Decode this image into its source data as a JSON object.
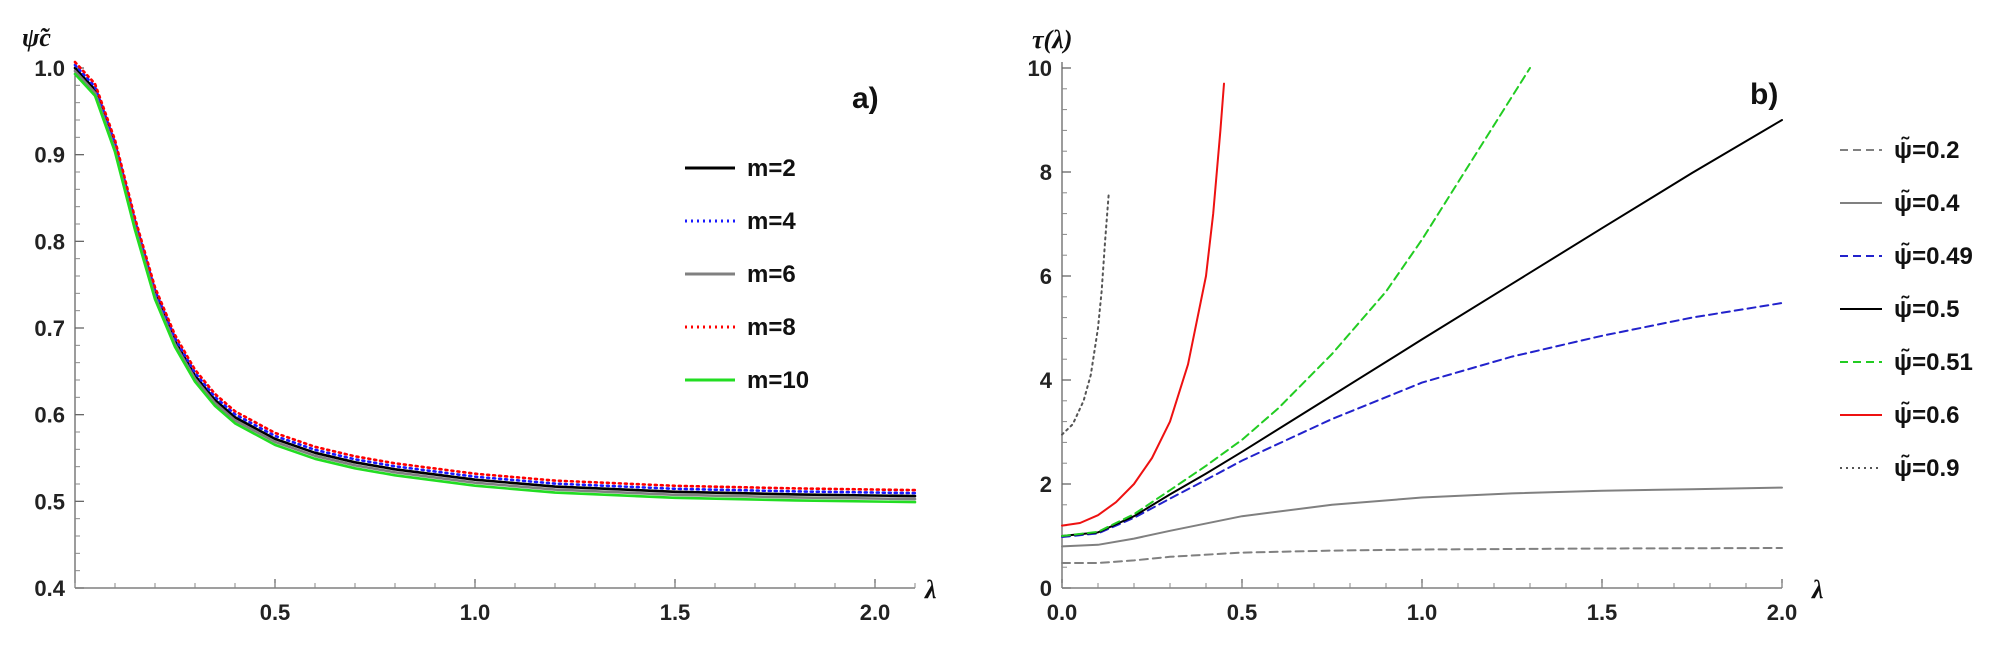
{
  "chart_data": [
    {
      "type": "line",
      "panel": "a)",
      "xlabel": "λ",
      "ylabel": "ψ̃c",
      "xlim": [
        0.0,
        2.1
      ],
      "ylim": [
        0.4,
        1.0
      ],
      "xticks": [
        0.5,
        1.0,
        1.5,
        2.0
      ],
      "xtick_labels": [
        "0.5",
        "1.0",
        "1.5",
        "2.0"
      ],
      "yticks": [
        0.4,
        0.5,
        0.6,
        0.7,
        0.8,
        0.9,
        1.0
      ],
      "ytick_labels": [
        "0.4",
        "0.5",
        "0.6",
        "0.7",
        "0.8",
        "0.9",
        "1.0"
      ],
      "legend_position": "center-right",
      "x": [
        0.0,
        0.05,
        0.1,
        0.15,
        0.2,
        0.25,
        0.3,
        0.35,
        0.4,
        0.5,
        0.6,
        0.7,
        0.8,
        1.0,
        1.2,
        1.5,
        1.8,
        2.1
      ],
      "series": [
        {
          "name": "m=2",
          "label": "m=2",
          "color": "#000000",
          "style": "solid",
          "values": [
            1.0,
            0.975,
            0.91,
            0.82,
            0.74,
            0.685,
            0.645,
            0.617,
            0.597,
            0.572,
            0.556,
            0.545,
            0.537,
            0.525,
            0.517,
            0.511,
            0.508,
            0.506
          ]
        },
        {
          "name": "m=4",
          "label": "m=4",
          "color": "#1a1aff",
          "style": "dotted",
          "values": [
            1.0,
            0.975,
            0.91,
            0.82,
            0.74,
            0.685,
            0.645,
            0.617,
            0.597,
            0.572,
            0.556,
            0.545,
            0.537,
            0.525,
            0.517,
            0.511,
            0.508,
            0.506
          ]
        },
        {
          "name": "m=6",
          "label": "m=6",
          "color": "#808080",
          "style": "solid",
          "values": [
            1.0,
            0.975,
            0.91,
            0.82,
            0.74,
            0.685,
            0.645,
            0.617,
            0.597,
            0.572,
            0.556,
            0.545,
            0.537,
            0.525,
            0.517,
            0.511,
            0.508,
            0.506
          ]
        },
        {
          "name": "m=8",
          "label": "m=8",
          "color": "#ff0000",
          "style": "dotted",
          "values": [
            1.0,
            0.975,
            0.91,
            0.82,
            0.74,
            0.685,
            0.645,
            0.617,
            0.597,
            0.572,
            0.556,
            0.545,
            0.537,
            0.525,
            0.517,
            0.511,
            0.508,
            0.506
          ]
        },
        {
          "name": "m=10",
          "label": "m=10",
          "color": "#22dd22",
          "style": "solid",
          "values": [
            1.0,
            0.975,
            0.91,
            0.82,
            0.74,
            0.685,
            0.645,
            0.617,
            0.597,
            0.572,
            0.556,
            0.545,
            0.537,
            0.525,
            0.517,
            0.511,
            0.508,
            0.506
          ]
        }
      ]
    },
    {
      "type": "line",
      "panel": "b)",
      "xlabel": "λ",
      "ylabel": "τ(λ)",
      "xlim": [
        0.0,
        2.0
      ],
      "ylim": [
        0,
        10
      ],
      "xticks": [
        0.0,
        0.5,
        1.0,
        1.5,
        2.0
      ],
      "xtick_labels": [
        "0.0",
        "0.5",
        "1.0",
        "1.5",
        "2.0"
      ],
      "yticks": [
        0,
        2,
        4,
        6,
        8,
        10
      ],
      "ytick_labels": [
        "0",
        "2",
        "4",
        "6",
        "8",
        "10"
      ],
      "legend_position": "right outside",
      "series": [
        {
          "name": "ψ̃=0.2",
          "label": "ψ̃=0.2",
          "color": "#808080",
          "style": "dashed",
          "x": [
            0.0,
            0.1,
            0.2,
            0.3,
            0.5,
            0.75,
            1.0,
            1.5,
            2.0
          ],
          "values": [
            0.48,
            0.48,
            0.53,
            0.6,
            0.68,
            0.72,
            0.74,
            0.76,
            0.77
          ]
        },
        {
          "name": "ψ̃=0.4",
          "label": "ψ̃=0.4",
          "color": "#808080",
          "style": "solid",
          "x": [
            0.0,
            0.1,
            0.2,
            0.3,
            0.5,
            0.75,
            1.0,
            1.25,
            1.5,
            1.75,
            2.0
          ],
          "values": [
            0.8,
            0.83,
            0.95,
            1.1,
            1.38,
            1.6,
            1.74,
            1.82,
            1.87,
            1.9,
            1.93
          ]
        },
        {
          "name": "ψ̃=0.49",
          "label": "ψ̃=0.49",
          "color": "#2222cc",
          "style": "dashed",
          "x": [
            0.0,
            0.1,
            0.2,
            0.3,
            0.4,
            0.5,
            0.75,
            1.0,
            1.25,
            1.5,
            1.75,
            2.0
          ],
          "values": [
            0.98,
            1.05,
            1.35,
            1.72,
            2.08,
            2.45,
            3.25,
            3.95,
            4.45,
            4.85,
            5.2,
            5.48
          ]
        },
        {
          "name": "ψ̃=0.5",
          "label": "ψ̃=0.5",
          "color": "#000000",
          "style": "solid",
          "x": [
            0.0,
            0.1,
            0.2,
            0.3,
            0.4,
            0.5,
            0.75,
            1.0,
            1.25,
            1.5,
            1.75,
            2.0
          ],
          "values": [
            1.0,
            1.07,
            1.38,
            1.8,
            2.2,
            2.62,
            3.7,
            4.78,
            5.85,
            6.92,
            7.98,
            9.0
          ]
        },
        {
          "name": "ψ̃=0.51",
          "label": "ψ̃=0.51",
          "color": "#22cc22",
          "style": "dashed",
          "x": [
            0.0,
            0.1,
            0.2,
            0.3,
            0.4,
            0.5,
            0.6,
            0.75,
            0.9,
            1.0,
            1.1,
            1.2,
            1.3
          ],
          "values": [
            1.0,
            1.08,
            1.42,
            1.88,
            2.35,
            2.85,
            3.45,
            4.5,
            5.7,
            6.7,
            7.8,
            8.9,
            10.0
          ]
        },
        {
          "name": "ψ̃=0.6",
          "label": "ψ̃=0.6",
          "color": "#ee1111",
          "style": "solid",
          "x": [
            0.0,
            0.05,
            0.1,
            0.15,
            0.2,
            0.25,
            0.3,
            0.35,
            0.4,
            0.42,
            0.44,
            0.45
          ],
          "values": [
            1.2,
            1.25,
            1.4,
            1.65,
            2.0,
            2.5,
            3.2,
            4.3,
            6.0,
            7.2,
            8.8,
            9.7
          ]
        },
        {
          "name": "ψ̃=0.9",
          "label": "ψ̃=0.9",
          "color": "#555555",
          "style": "dotted",
          "x": [
            0.0,
            0.03,
            0.06,
            0.08,
            0.1,
            0.11,
            0.12,
            0.13
          ],
          "values": [
            2.95,
            3.15,
            3.6,
            4.1,
            5.0,
            5.7,
            6.7,
            7.6
          ]
        }
      ]
    }
  ]
}
